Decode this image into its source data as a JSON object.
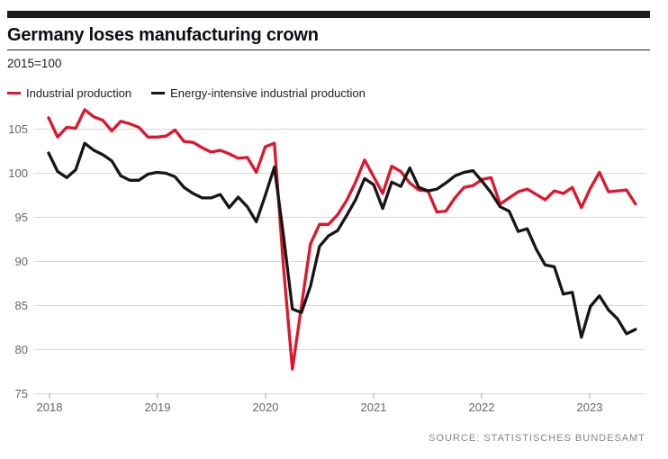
{
  "header": {
    "title": "Germany loses manufacturing crown",
    "index_note": "2015=100"
  },
  "legend": [
    {
      "label": "Industrial production",
      "color": "#e0152b"
    },
    {
      "label": "Energy-intensive industrial production",
      "color": "#161616"
    }
  ],
  "source": "Source: Statistisches Bundesamt",
  "chart_data": {
    "type": "line",
    "title": "Germany loses manufacturing crown",
    "subtitle": "2015=100",
    "frequency": "monthly",
    "start_month": "2018-01",
    "end_month": "2023-06",
    "xticks": [
      "2018",
      "2019",
      "2020",
      "2021",
      "2022",
      "2023"
    ],
    "yticks": [
      75,
      80,
      85,
      90,
      95,
      100,
      105
    ],
    "ylim": [
      75,
      107.5
    ],
    "grid": "horizontal",
    "legend_position": "top-left",
    "series": [
      {
        "name": "Industrial production",
        "color": "#e0152b",
        "values": [
          106.3,
          104.1,
          105.2,
          105.1,
          107.2,
          106.4,
          106.0,
          104.8,
          105.9,
          105.6,
          105.2,
          104.1,
          104.1,
          104.2,
          104.9,
          103.6,
          103.5,
          102.9,
          102.4,
          102.6,
          102.2,
          101.7,
          101.8,
          100.1,
          103.0,
          103.4,
          89.5,
          77.8,
          84.9,
          92.0,
          94.2,
          94.2,
          95.3,
          96.9,
          99.0,
          101.5,
          99.6,
          97.7,
          100.8,
          100.2,
          98.9,
          98.1,
          98.0,
          95.6,
          95.7,
          97.2,
          98.4,
          98.6,
          99.3,
          99.5,
          96.5,
          97.2,
          97.9,
          98.2,
          97.6,
          97.0,
          98.0,
          97.7,
          98.4,
          96.1,
          98.3,
          100.1,
          97.9,
          98.0,
          98.1,
          96.5
        ]
      },
      {
        "name": "Energy-intensive industrial production",
        "color": "#161616",
        "values": [
          102.3,
          100.2,
          99.5,
          100.4,
          103.4,
          102.6,
          102.1,
          101.4,
          99.7,
          99.2,
          99.2,
          99.9,
          100.1,
          100.0,
          99.6,
          98.4,
          97.7,
          97.2,
          97.2,
          97.6,
          96.1,
          97.3,
          96.2,
          94.5,
          97.5,
          100.7,
          93.0,
          84.6,
          84.2,
          87.2,
          91.7,
          92.9,
          93.5,
          95.2,
          97.0,
          99.4,
          98.7,
          96.0,
          99.0,
          98.5,
          100.6,
          98.4,
          98.0,
          98.2,
          98.9,
          99.7,
          100.1,
          100.3,
          99.1,
          97.8,
          96.2,
          95.7,
          93.4,
          93.7,
          91.4,
          89.6,
          89.4,
          86.3,
          86.5,
          81.4,
          84.9,
          86.1,
          84.5,
          83.5,
          81.8,
          82.3
        ]
      }
    ]
  }
}
